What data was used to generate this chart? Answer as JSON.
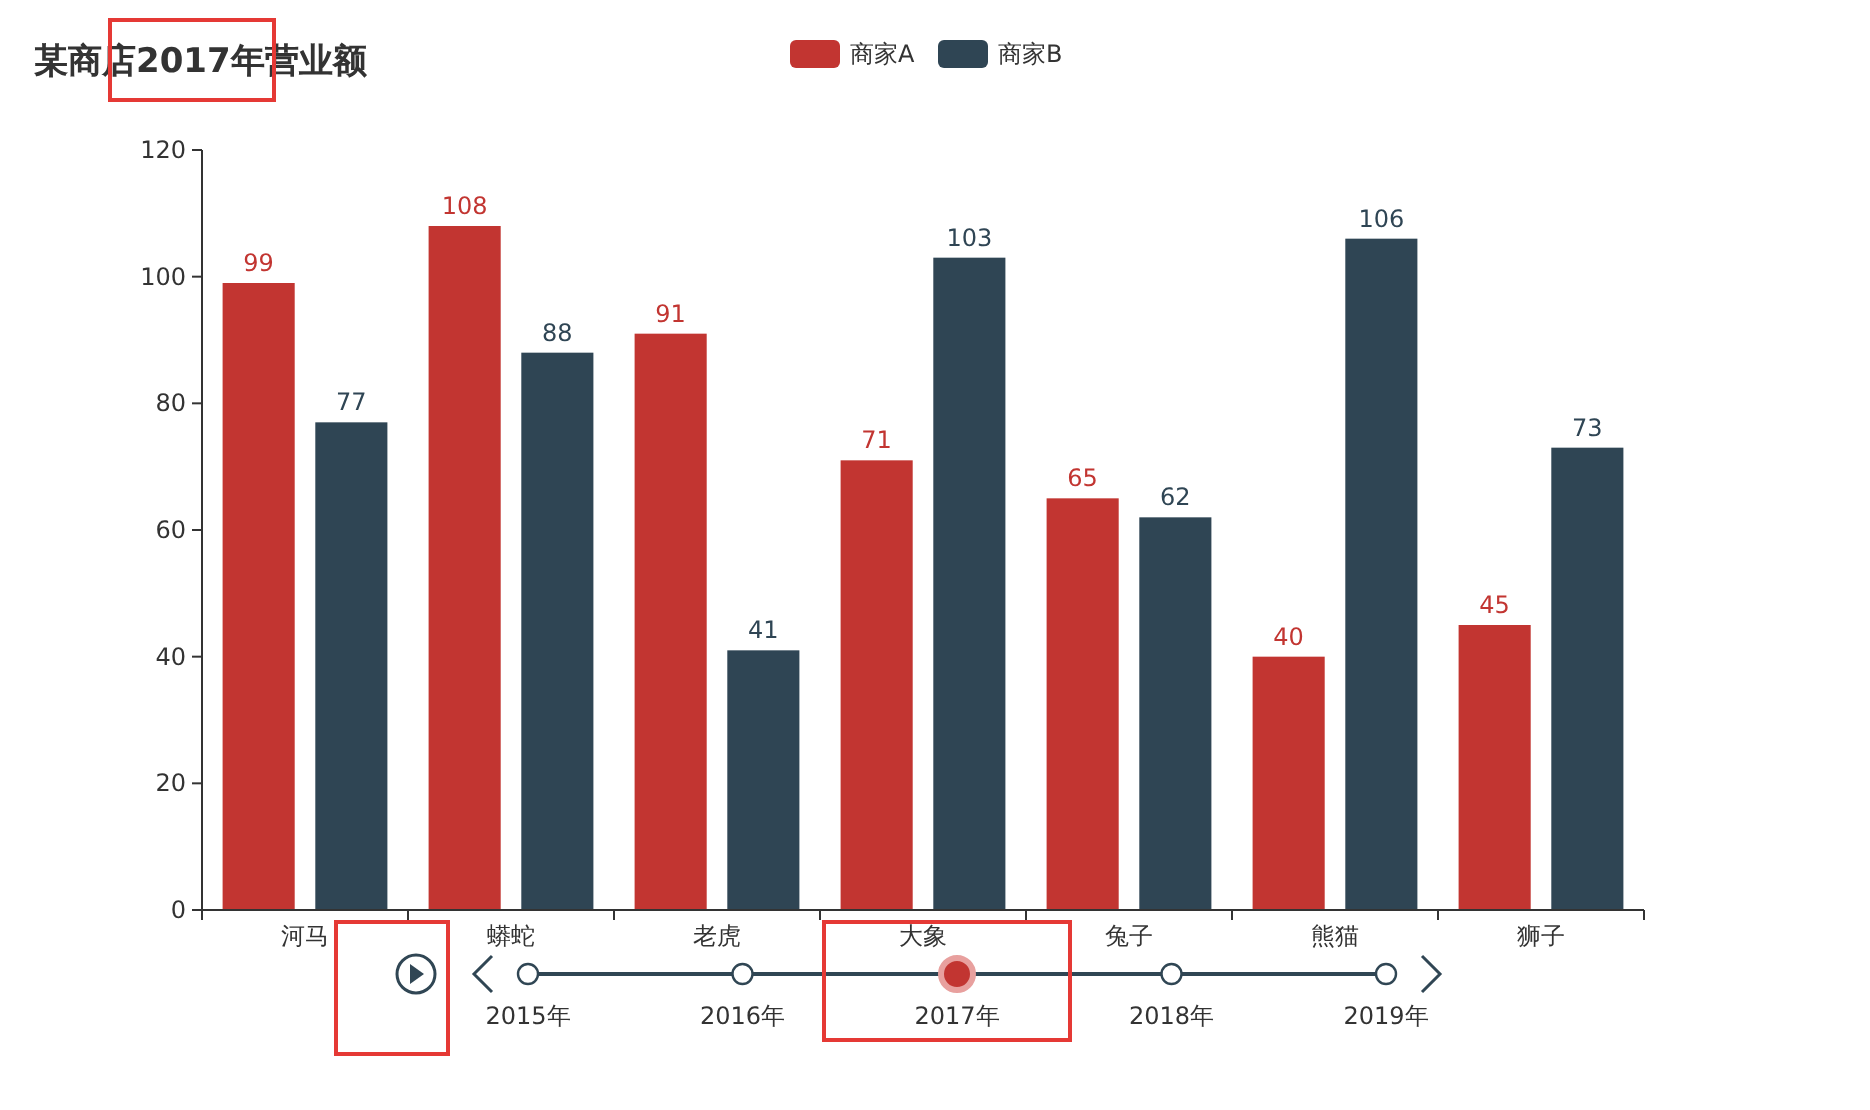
{
  "chart_data": {
    "type": "bar",
    "title": "某商店2017年营业额",
    "categories": [
      "河马",
      "蟒蛇",
      "老虎",
      "大象",
      "兔子",
      "熊猫",
      "狮子"
    ],
    "series": [
      {
        "name": "商家A",
        "color": "#c23531",
        "values": [
          99,
          108,
          91,
          71,
          65,
          40,
          45
        ]
      },
      {
        "name": "商家B",
        "color": "#2f4554",
        "values": [
          77,
          88,
          41,
          103,
          62,
          106,
          73
        ]
      }
    ],
    "ylim": [
      0,
      120
    ],
    "yticks": [
      0,
      20,
      40,
      60,
      80,
      100,
      120
    ],
    "grid": false,
    "legend": "top",
    "data_labels": true,
    "annotations": [
      "2015年",
      "2016年",
      "2017年",
      "2018年",
      "2019年"
    ]
  }
}
